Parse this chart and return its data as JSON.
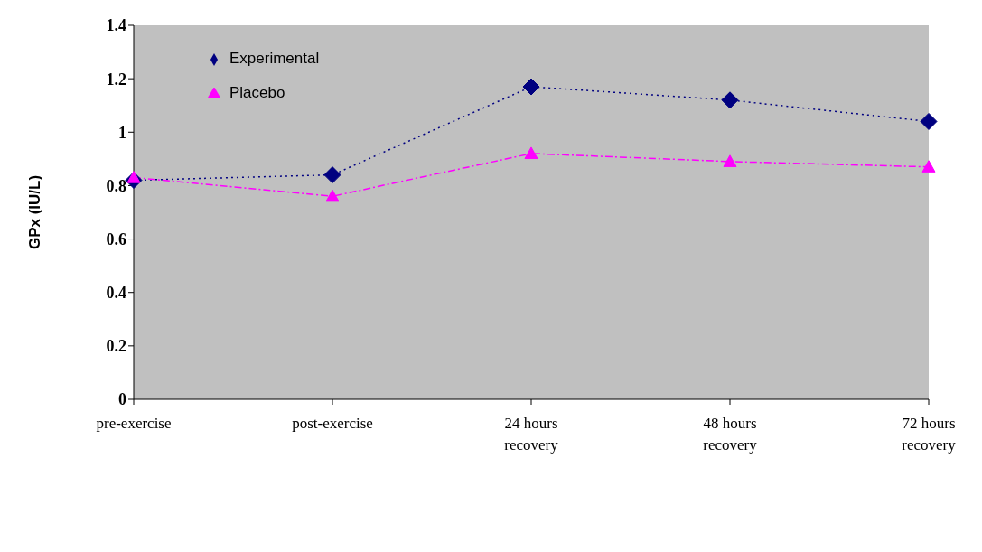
{
  "chart_data": {
    "type": "line",
    "ylabel": "GPx (IU/L)",
    "categories": [
      "pre-exercise",
      "post-exercise",
      "24 hours recovery",
      "48 hours recovery",
      "72 hours recovery"
    ],
    "series": [
      {
        "name": "Experimental",
        "color": "#000080",
        "marker": "diamond",
        "line_style": "dotted",
        "values": [
          0.82,
          0.84,
          1.17,
          1.12,
          1.04
        ]
      },
      {
        "name": "Placebo",
        "color": "#ff00ff",
        "marker": "triangle",
        "line_style": "dashed",
        "values": [
          0.83,
          0.76,
          0.92,
          0.89,
          0.87
        ]
      }
    ],
    "ylim": [
      0,
      1.4
    ],
    "yticks": [
      0,
      0.2,
      0.4,
      0.6,
      0.8,
      1,
      1.2,
      1.4
    ],
    "grid": false,
    "legend": "top left"
  }
}
